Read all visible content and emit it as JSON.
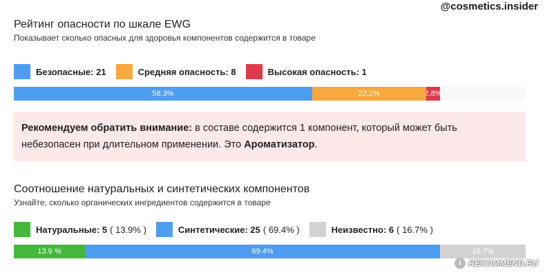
{
  "watermark_top": "@cosmetics.insider",
  "ewg": {
    "title": "Рейтинг опасности по шкале EWG",
    "subtitle": "Показывает сколько опасных для здоровья компонентов содержится в товаре",
    "legend": [
      {
        "label": "Безопасные: 21",
        "color": "#4d9df0"
      },
      {
        "label": "Средняя опасность: 8",
        "color": "#f9a83e"
      },
      {
        "label": "Высокая опасность: 1",
        "color": "#de3a4a"
      }
    ],
    "segments": [
      {
        "label": "58.3%",
        "value": 58.3,
        "color": "#4d9df0"
      },
      {
        "label": "22.2%",
        "value": 22.2,
        "color": "#f9a83e"
      },
      {
        "label": "2.8%",
        "value": 2.8,
        "color": "#de3a4a"
      }
    ]
  },
  "alert": {
    "lead": "Рекомендуем обратить внимание:",
    "text": " в составе содержится 1 компонент, который может быть небезопасен при длительном применении. Это ",
    "ingredient": "Ароматизатор",
    "tail": "."
  },
  "natural": {
    "title": "Соотношение натуральных и синтетических компонентов",
    "subtitle": "Узнайте, сколько органических ингредиентов содержится в товаре",
    "legend": [
      {
        "label": "Натуральные: 5",
        "pct": "( 13.9% )",
        "color": "#43b83a"
      },
      {
        "label": "Синтетические: 25",
        "pct": "( 69.4% )",
        "color": "#4d9df0"
      },
      {
        "label": "Неизвестно: 6",
        "pct": "( 16.7% )",
        "color": "#d2d2d2"
      }
    ],
    "segments": [
      {
        "label": "13.9 %",
        "value": 13.9,
        "color": "#43b83a"
      },
      {
        "label": "69.4%",
        "value": 69.4,
        "color": "#4d9df0"
      },
      {
        "label": "16.7%",
        "value": 16.7,
        "color": "#d2d2d2"
      }
    ]
  },
  "watermark_bottom": {
    "logo": "i",
    "text": "RECOMMEND.RU"
  }
}
